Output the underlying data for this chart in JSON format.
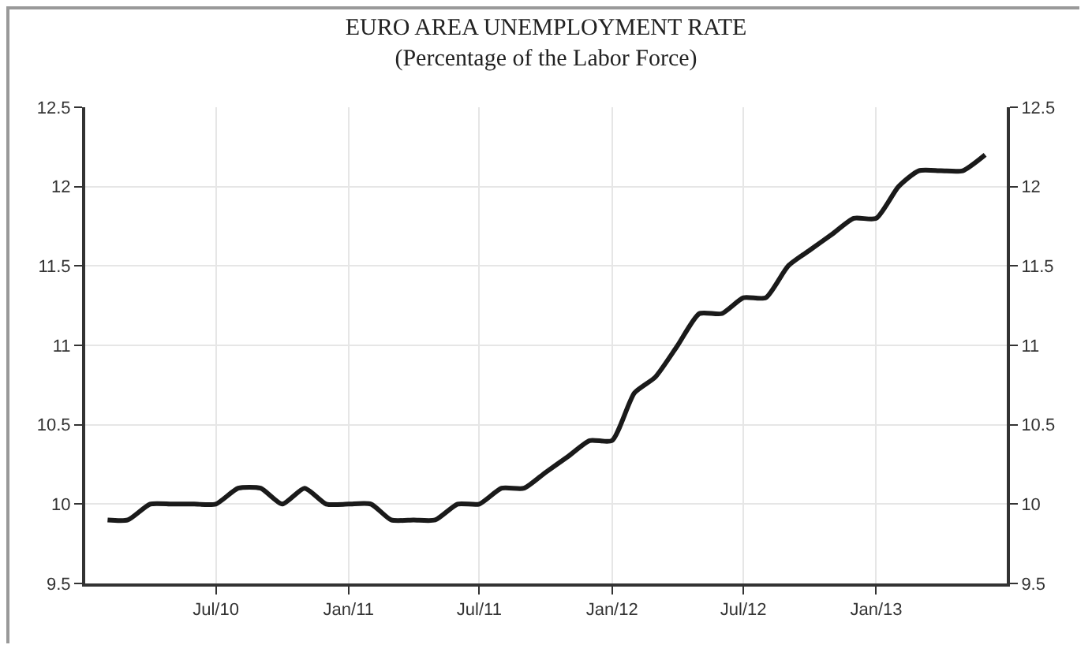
{
  "chart_data": {
    "type": "line",
    "title": "EURO AREA UNEMPLOYMENT RATE",
    "subtitle": "(Percentage of the Labor Force)",
    "x": [
      "2010-02",
      "2010-03",
      "2010-04",
      "2010-05",
      "2010-06",
      "2010-07",
      "2010-08",
      "2010-09",
      "2010-10",
      "2010-11",
      "2010-12",
      "2011-01",
      "2011-02",
      "2011-03",
      "2011-04",
      "2011-05",
      "2011-06",
      "2011-07",
      "2011-08",
      "2011-09",
      "2011-10",
      "2011-11",
      "2011-12",
      "2012-01",
      "2012-02",
      "2012-03",
      "2012-04",
      "2012-05",
      "2012-06",
      "2012-07",
      "2012-08",
      "2012-09",
      "2012-10",
      "2012-11",
      "2012-12",
      "2013-01",
      "2013-02",
      "2013-03",
      "2013-04",
      "2013-05",
      "2013-06"
    ],
    "series": [
      {
        "color": "#1a1a1a",
        "values": [
          9.9,
          9.9,
          10.0,
          10.0,
          10.0,
          10.0,
          10.1,
          10.1,
          10.0,
          10.1,
          10.0,
          10.0,
          10.0,
          9.9,
          9.9,
          9.9,
          10.0,
          10.0,
          10.1,
          10.1,
          10.2,
          10.3,
          10.4,
          10.4,
          10.7,
          10.8,
          11.0,
          11.2,
          11.2,
          11.3,
          11.3,
          11.5,
          11.6,
          11.7,
          11.8,
          11.8,
          12.0,
          12.1,
          12.1,
          12.1,
          12.2
        ]
      }
    ],
    "xlim": [
      "2010-01",
      "2013-07"
    ],
    "xticks": [
      {
        "value": "2010-07",
        "label": "Jul/10"
      },
      {
        "value": "2011-01",
        "label": "Jan/11"
      },
      {
        "value": "2011-07",
        "label": "Jul/11"
      },
      {
        "value": "2012-01",
        "label": "Jan/12"
      },
      {
        "value": "2012-07",
        "label": "Jul/12"
      },
      {
        "value": "2013-01",
        "label": "Jan/13"
      }
    ],
    "ylim": [
      9.5,
      12.5
    ],
    "yticks": [
      9.5,
      10,
      10.5,
      11,
      11.5,
      12,
      12.5
    ],
    "y2lim": [
      9.5,
      12.5
    ],
    "y2ticks": [
      9.5,
      10,
      10.5,
      11,
      11.5,
      12,
      12.5
    ],
    "grid": true,
    "legend": false,
    "marker": "none",
    "line_style": "solid"
  }
}
